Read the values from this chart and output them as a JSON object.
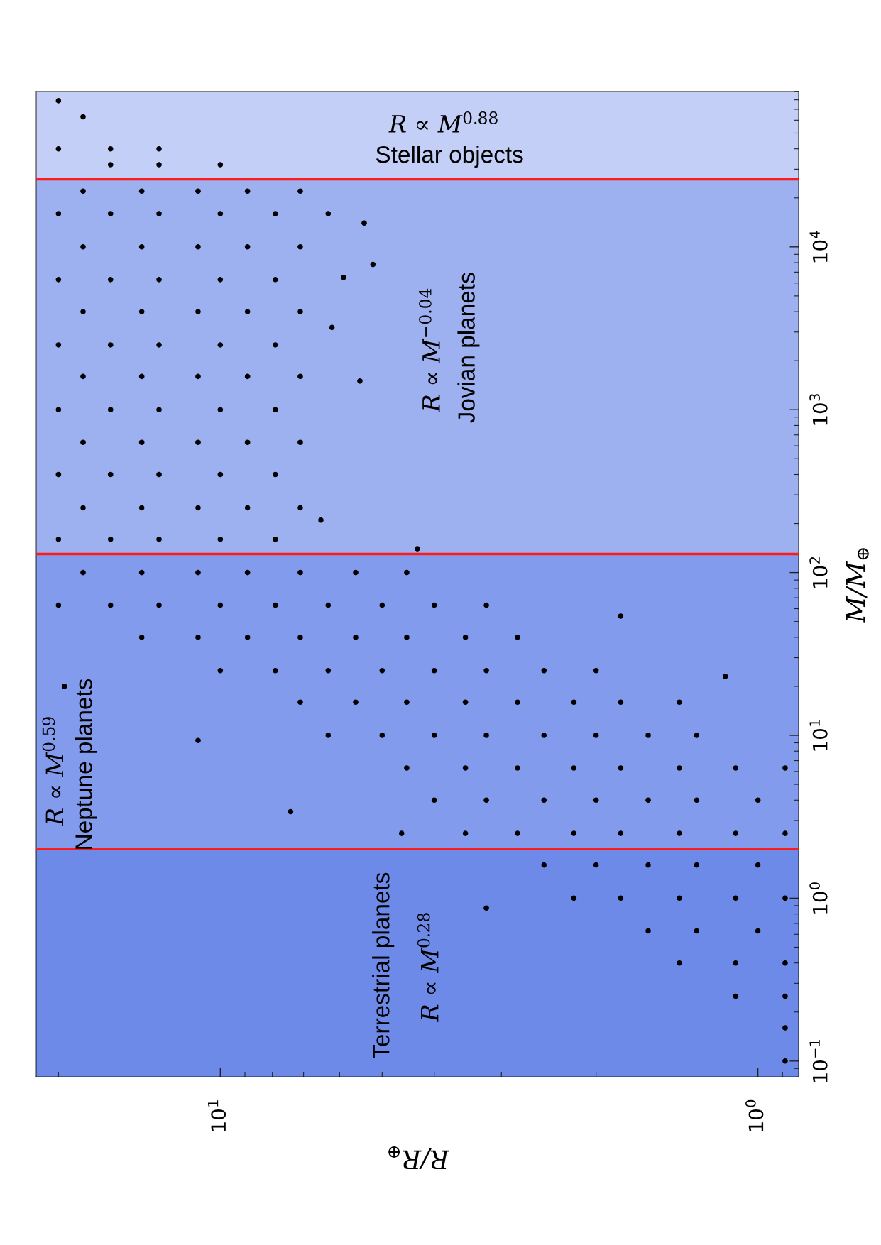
{
  "chart_data": {
    "type": "scatter",
    "xlabel": "R/R$_{⊕}$",
    "ylabel": "M/M$_{⊕}$",
    "log": "xy",
    "xlim": [
      22,
      0.84
    ],
    "ylim": [
      0.08,
      90000
    ],
    "xticks": [
      {
        "value": 20,
        "label": null
      },
      {
        "value": 10,
        "label": "10$^{1}$"
      },
      {
        "value": 9,
        "label": null
      },
      {
        "value": 8,
        "label": null
      },
      {
        "value": 7,
        "label": null
      },
      {
        "value": 6,
        "label": null
      },
      {
        "value": 5,
        "label": null
      },
      {
        "value": 4,
        "label": null
      },
      {
        "value": 3,
        "label": null
      },
      {
        "value": 2,
        "label": null
      },
      {
        "value": 1,
        "label": "10$^{0}$"
      },
      {
        "value": 0.9,
        "label": null
      }
    ],
    "yticks": [
      {
        "value": 0.09,
        "label": null
      },
      {
        "value": 0.1,
        "label": "10$^{−1}$"
      },
      {
        "value": 0.2,
        "label": null
      },
      {
        "value": 0.3,
        "label": null
      },
      {
        "value": 0.4,
        "label": null
      },
      {
        "value": 0.5,
        "label": null
      },
      {
        "value": 0.6,
        "label": null
      },
      {
        "value": 0.7,
        "label": null
      },
      {
        "value": 0.8,
        "label": null
      },
      {
        "value": 0.9,
        "label": null
      },
      {
        "value": 1,
        "label": "10$^{0}$"
      },
      {
        "value": 2,
        "label": null
      },
      {
        "value": 3,
        "label": null
      },
      {
        "value": 4,
        "label": null
      },
      {
        "value": 5,
        "label": null
      },
      {
        "value": 6,
        "label": null
      },
      {
        "value": 7,
        "label": null
      },
      {
        "value": 8,
        "label": null
      },
      {
        "value": 9,
        "label": null
      },
      {
        "value": 10,
        "label": "10$^{1}$"
      },
      {
        "value": 20,
        "label": null
      },
      {
        "value": 30,
        "label": null
      },
      {
        "value": 40,
        "label": null
      },
      {
        "value": 50,
        "label": null
      },
      {
        "value": 60,
        "label": null
      },
      {
        "value": 70,
        "label": null
      },
      {
        "value": 80,
        "label": null
      },
      {
        "value": 90,
        "label": null
      },
      {
        "value": 100,
        "label": "10$^{2}$"
      },
      {
        "value": 200,
        "label": null
      },
      {
        "value": 300,
        "label": null
      },
      {
        "value": 400,
        "label": null
      },
      {
        "value": 500,
        "label": null
      },
      {
        "value": 600,
        "label": null
      },
      {
        "value": 700,
        "label": null
      },
      {
        "value": 800,
        "label": null
      },
      {
        "value": 900,
        "label": null
      },
      {
        "value": 1000,
        "label": "10$^{3}$"
      },
      {
        "value": 2000,
        "label": null
      },
      {
        "value": 3000,
        "label": null
      },
      {
        "value": 4000,
        "label": null
      },
      {
        "value": 5000,
        "label": null
      },
      {
        "value": 6000,
        "label": null
      },
      {
        "value": 7000,
        "label": null
      },
      {
        "value": 8000,
        "label": null
      },
      {
        "value": 9000,
        "label": null
      },
      {
        "value": 10000,
        "label": "10$^{4}$"
      },
      {
        "value": 20000,
        "label": null
      },
      {
        "value": 30000,
        "label": null
      },
      {
        "value": 40000,
        "label": null
      },
      {
        "value": 50000,
        "label": null
      },
      {
        "value": 60000,
        "label": null
      },
      {
        "value": 70000,
        "label": null
      },
      {
        "value": 80000,
        "label": null
      },
      {
        "value": 90000,
        "label": null
      }
    ],
    "color": "#000000",
    "marker": "circle",
    "x": [
      0.89,
      0.89,
      0.89,
      1.1,
      0.89,
      1.1,
      1.4,
      1,
      1.3,
      1.6,
      0.89,
      1.1,
      1.4,
      1.8,
      2.2,
      1,
      1.3,
      1.6,
      2,
      2.5,
      0.89,
      1.1,
      1.4,
      1.8,
      2.2,
      2.8,
      3.5,
      1,
      1.3,
      1.6,
      2,
      2.5,
      3.2,
      4,
      0.89,
      1.1,
      1.4,
      1.8,
      2.2,
      2.8,
      3.5,
      4.5,
      1.3,
      1.6,
      2,
      2.5,
      3.2,
      4,
      5,
      6.3,
      1.4,
      1.8,
      2.2,
      2.8,
      3.5,
      4.5,
      5.6,
      7.1,
      2,
      2.5,
      3.2,
      4,
      5,
      6.3,
      7.9,
      10,
      2.8,
      3.5,
      4.5,
      5.6,
      7.1,
      8.9,
      11,
      14,
      3.2,
      4,
      5,
      6.3,
      7.9,
      10,
      13,
      16,
      20,
      4.5,
      5.6,
      7.1,
      8.9,
      11,
      14,
      18,
      7.9,
      10,
      13,
      16,
      20,
      7.1,
      8.9,
      11,
      14,
      18,
      7.9,
      10,
      13,
      16,
      20,
      7.1,
      8.9,
      11,
      14,
      18,
      7.9,
      10,
      13,
      16,
      20,
      7.1,
      8.9,
      11,
      14,
      18,
      7.9,
      10,
      13,
      16,
      20,
      7.1,
      8.9,
      11,
      14,
      18,
      7.9,
      10,
      13,
      16,
      20,
      7.1,
      8.9,
      11,
      14,
      18,
      6.3,
      7.9,
      10,
      13,
      16,
      20,
      7.1,
      8.9,
      11,
      14,
      18,
      10,
      13,
      16,
      13,
      16,
      20,
      18,
      20,
      5.4,
      5.2,
      5.9,
      5.5,
      6.2,
      6.5,
      4.3,
      1.8,
      1.15,
      11,
      7.4,
      4.6,
      3.2,
      19.5
    ],
    "values": [
      0.1,
      0.16,
      0.25,
      0.25,
      0.4,
      0.4,
      0.4,
      0.63,
      0.63,
      0.63,
      1,
      1,
      1,
      1,
      1,
      1.6,
      1.6,
      1.6,
      1.6,
      1.6,
      2.5,
      2.5,
      2.5,
      2.5,
      2.5,
      2.5,
      2.5,
      4,
      4,
      4,
      4,
      4,
      4,
      4,
      6.3,
      6.3,
      6.3,
      6.3,
      6.3,
      6.3,
      6.3,
      6.3,
      10,
      10,
      10,
      10,
      10,
      10,
      10,
      10,
      16,
      16,
      16,
      16,
      16,
      16,
      16,
      16,
      25,
      25,
      25,
      25,
      25,
      25,
      25,
      25,
      40,
      40,
      40,
      40,
      40,
      40,
      40,
      40,
      63,
      63,
      63,
      63,
      63,
      63,
      63,
      63,
      63,
      100,
      100,
      100,
      100,
      100,
      100,
      100,
      160,
      160,
      160,
      160,
      160,
      250,
      250,
      250,
      250,
      250,
      400,
      400,
      400,
      400,
      400,
      630,
      630,
      630,
      630,
      630,
      1000,
      1000,
      1000,
      1000,
      1000,
      1600,
      1600,
      1600,
      1600,
      1600,
      2500,
      2500,
      2500,
      2500,
      2500,
      4000,
      4000,
      4000,
      4000,
      4000,
      6300,
      6300,
      6300,
      6300,
      6300,
      10000,
      10000,
      10000,
      10000,
      10000,
      16000,
      16000,
      16000,
      16000,
      16000,
      16000,
      22000,
      22000,
      22000,
      22000,
      22000,
      32000,
      32000,
      32000,
      40000,
      40000,
      40000,
      63000,
      79000,
      14000,
      7800,
      6500,
      1500,
      3200,
      210,
      140,
      54,
      23,
      9.3,
      3.4,
      2.5,
      0.87,
      20
    ],
    "bands": [
      {
        "axis": "y",
        "from": 0.08,
        "to": 2,
        "label": "Terrestrial planets",
        "color": "#6d8ae8"
      },
      {
        "axis": "y",
        "from": 2,
        "to": 130,
        "label": "Neptune planets",
        "color": "#839bec"
      },
      {
        "axis": "y",
        "from": 130,
        "to": 26000,
        "label": "Jovian planets",
        "color": "#9db0f0"
      },
      {
        "axis": "y",
        "from": 26000,
        "to": 90000,
        "label": "Stellar objects",
        "color": "#c4cff7"
      }
    ],
    "ref_lines": [
      {
        "axis": "y",
        "value": 2,
        "color": "#ff1a1a"
      },
      {
        "axis": "y",
        "value": 130,
        "color": "#ff1a1a"
      },
      {
        "axis": "y",
        "value": 26000,
        "color": "#ff1a1a"
      }
    ],
    "annotations": [
      "R ∝ M$^{0.28}$",
      "R ∝ M$^{0.59}$",
      "R ∝ M$^{−0.04}$",
      "R ∝ M$^{0.88}$"
    ]
  }
}
